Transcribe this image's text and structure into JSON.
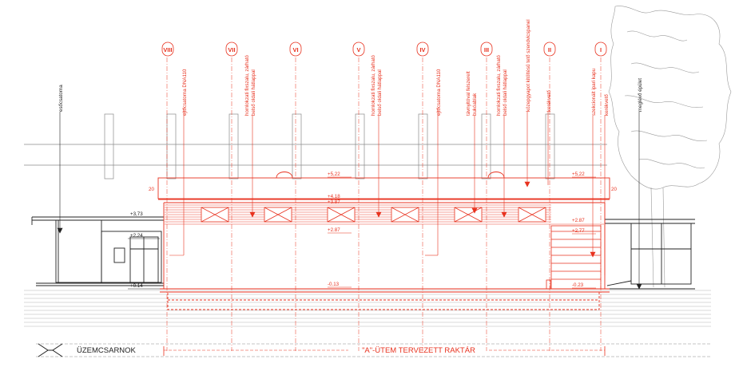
{
  "colors": {
    "red": "#e8321f",
    "black": "#222222",
    "grey": "#8a8a8a",
    "background": "#ffffff"
  },
  "axes": [
    {
      "id": "VIII",
      "label": "VIII"
    },
    {
      "id": "VII",
      "label": "VII"
    },
    {
      "id": "VI",
      "label": "VI"
    },
    {
      "id": "V",
      "label": "V"
    },
    {
      "id": "IV",
      "label": "IV"
    },
    {
      "id": "III",
      "label": "III"
    },
    {
      "id": "II",
      "label": "II"
    },
    {
      "id": "I",
      "label": "I"
    }
  ],
  "annotations_red": [
    {
      "id": "downpipe-1",
      "text": "ejtőcsatorna DNA110"
    },
    {
      "id": "window-vii",
      "text": "homlokzati fixszalu, zárható"
    },
    {
      "id": "window-vii-b",
      "text": "belső oldali hátlappal"
    },
    {
      "id": "window-v",
      "text": "homlokzati fixszalu, zárható"
    },
    {
      "id": "window-v-b",
      "text": "belső oldali hátlappal"
    },
    {
      "id": "downpipe-2",
      "text": "ejtőcsatorna DNA110"
    },
    {
      "id": "bumper",
      "text": "távnyitóval felszerelt"
    },
    {
      "id": "bumper-b",
      "text": "bukóablak"
    },
    {
      "id": "window-iii",
      "text": "homlokzati fixszalu, zárható"
    },
    {
      "id": "window-iii-b",
      "text": "belső oldali hátlappal"
    },
    {
      "id": "roof-panel",
      "text": "közepgyapot kitöltésű tető szendvicspanel"
    },
    {
      "id": "drain",
      "text": "kerékvető"
    },
    {
      "id": "door",
      "text": "szekcionált ipari kapu"
    },
    {
      "id": "kerekveto",
      "text": "kerékvető"
    }
  ],
  "annotations_black": [
    {
      "id": "esocsatorna",
      "text": "esőcsatorna"
    },
    {
      "id": "meglevo",
      "text": "meglévő épület"
    }
  ],
  "levels": {
    "top_left": "+5,22",
    "top_right": "+5,22",
    "l418": "+4.18",
    "l387": "+3.87",
    "l373": "+3,73",
    "l287": "+2.87",
    "l287r": "+2.87",
    "l277": "+2,77",
    "l224": "+2.24",
    "l014": "+0.14",
    "m013": "-0.13",
    "m023": "-0.23",
    "dim20a": "20",
    "dim20b": "20"
  },
  "footer": {
    "left_label": "ÜZEMCSARNOK",
    "main_label": "\"A\"-ÜTEM TERVEZETT RAKTÁR"
  }
}
